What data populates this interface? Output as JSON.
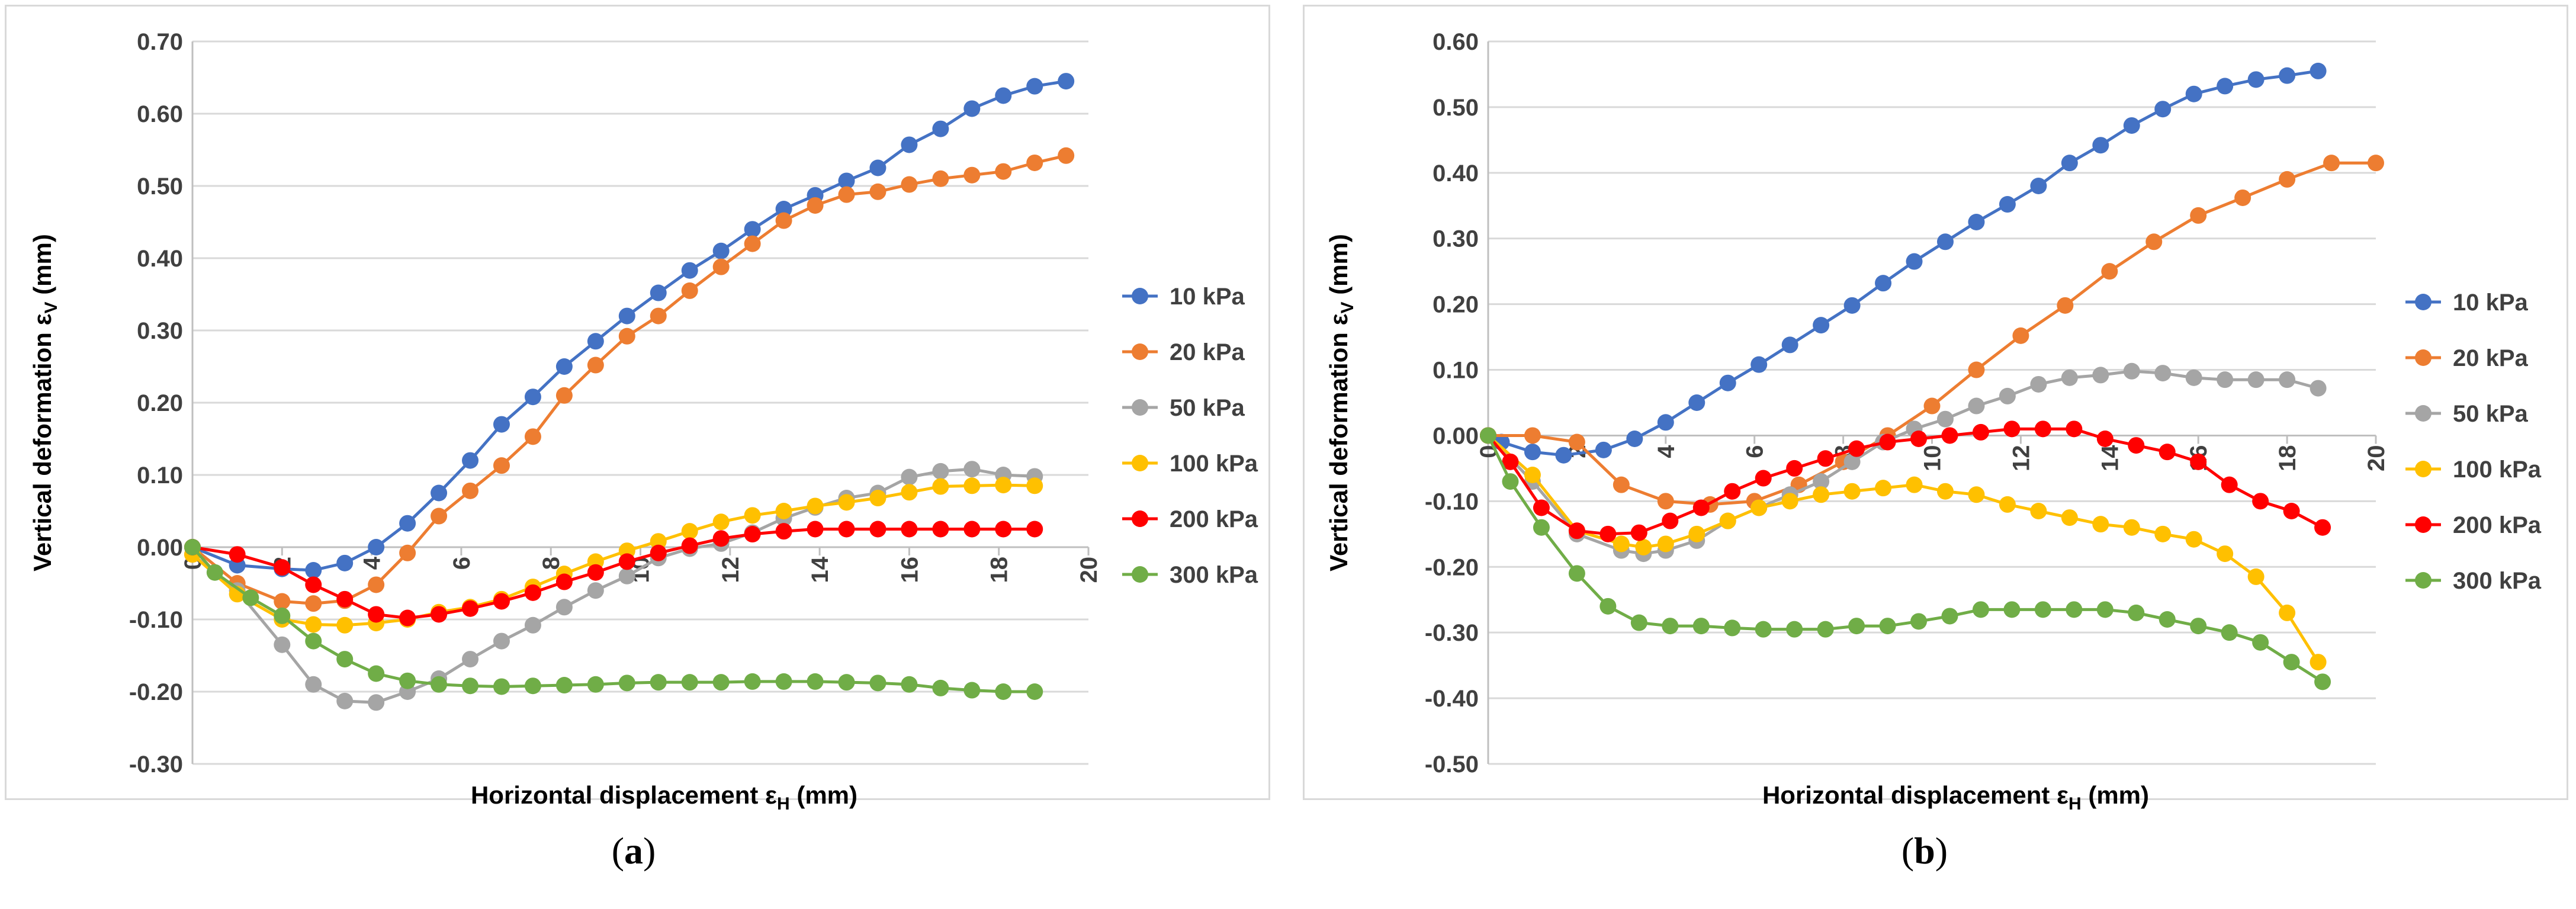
{
  "charts": [
    {
      "id": "a",
      "caption": "a",
      "chart_data": {
        "type": "line",
        "xlabel": "Horizontal displacement ε",
        "xlabel_sub": "H",
        "xlabel_unit": "(mm)",
        "ylabel": "Vertical deformation ε",
        "ylabel_sub": "V",
        "ylabel_unit": "(mm)",
        "xlim": [
          0,
          20
        ],
        "ylim": [
          -0.3,
          0.7
        ],
        "xticks": [
          0,
          2,
          4,
          6,
          8,
          10,
          12,
          14,
          16,
          18,
          20
        ],
        "yticks": [
          -0.3,
          -0.2,
          -0.1,
          0.0,
          0.1,
          0.2,
          0.3,
          0.4,
          0.5,
          0.6,
          0.7
        ],
        "ytick_labels": [
          "-0.30",
          "-0.20",
          "-0.10",
          "0.00",
          "0.10",
          "0.20",
          "0.30",
          "0.40",
          "0.50",
          "0.60",
          "0.70"
        ],
        "legend_position": "right",
        "series": [
          {
            "name": "10 kPa",
            "color": "#4472c4",
            "x": [
              0,
              1,
              2,
              2.7,
              3.4,
              4.1,
              4.8,
              5.5,
              6.2,
              6.9,
              7.6,
              8.3,
              9,
              9.7,
              10.4,
              11.1,
              11.8,
              12.5,
              13.2,
              13.9,
              14.6,
              15.3,
              16,
              16.7,
              17.4,
              18.1,
              18.8,
              19.5
            ],
            "y": [
              0,
              -0.025,
              -0.03,
              -0.032,
              -0.022,
              0,
              0.033,
              0.075,
              0.12,
              0.17,
              0.208,
              0.25,
              0.285,
              0.32,
              0.352,
              0.383,
              0.41,
              0.44,
              0.468,
              0.487,
              0.507,
              0.525,
              0.557,
              0.579,
              0.607,
              0.625,
              0.638,
              0.645
            ]
          },
          {
            "name": "20 kPa",
            "color": "#ed7d31",
            "x": [
              0,
              1,
              2,
              2.7,
              3.4,
              4.1,
              4.8,
              5.5,
              6.2,
              6.9,
              7.6,
              8.3,
              9,
              9.7,
              10.4,
              11.1,
              11.8,
              12.5,
              13.2,
              13.9,
              14.6,
              15.3,
              16,
              16.7,
              17.4,
              18.1,
              18.8,
              19.5
            ],
            "y": [
              0,
              -0.05,
              -0.075,
              -0.078,
              -0.074,
              -0.052,
              -0.008,
              0.043,
              0.078,
              0.113,
              0.153,
              0.21,
              0.252,
              0.292,
              0.32,
              0.355,
              0.388,
              0.42,
              0.452,
              0.473,
              0.488,
              0.492,
              0.502,
              0.51,
              0.515,
              0.52,
              0.532,
              0.542
            ]
          },
          {
            "name": "50 kPa",
            "color": "#a5a5a5",
            "x": [
              0,
              1,
              2,
              2.7,
              3.4,
              4.1,
              4.8,
              5.5,
              6.2,
              6.9,
              7.6,
              8.3,
              9,
              9.7,
              10.4,
              11.1,
              11.8,
              12.5,
              13.2,
              13.9,
              14.6,
              15.3,
              16,
              16.7,
              17.4,
              18.1,
              18.8
            ],
            "y": [
              -0.01,
              -0.06,
              -0.135,
              -0.19,
              -0.213,
              -0.215,
              -0.2,
              -0.182,
              -0.155,
              -0.13,
              -0.108,
              -0.083,
              -0.06,
              -0.04,
              -0.015,
              -0.002,
              0.005,
              0.02,
              0.04,
              0.055,
              0.068,
              0.075,
              0.097,
              0.105,
              0.108,
              0.1,
              0.098
            ]
          },
          {
            "name": "100 kPa",
            "color": "#ffc000",
            "x": [
              0,
              1,
              2,
              2.7,
              3.4,
              4.1,
              4.8,
              5.5,
              6.2,
              6.9,
              7.6,
              8.3,
              9,
              9.7,
              10.4,
              11.1,
              11.8,
              12.5,
              13.2,
              13.9,
              14.6,
              15.3,
              16,
              16.7,
              17.4,
              18.1,
              18.8
            ],
            "y": [
              -0.01,
              -0.065,
              -0.1,
              -0.107,
              -0.108,
              -0.105,
              -0.1,
              -0.09,
              -0.083,
              -0.072,
              -0.055,
              -0.037,
              -0.02,
              -0.005,
              0.008,
              0.022,
              0.035,
              0.044,
              0.05,
              0.057,
              0.062,
              0.068,
              0.076,
              0.084,
              0.085,
              0.086,
              0.085
            ]
          },
          {
            "name": "200 kPa",
            "color": "#ff0000",
            "x": [
              0,
              1,
              2,
              2.7,
              3.4,
              4.1,
              4.8,
              5.5,
              6.2,
              6.9,
              7.6,
              8.3,
              9,
              9.7,
              10.4,
              11.1,
              11.8,
              12.5,
              13.2,
              13.9,
              14.6,
              15.3,
              16,
              16.7,
              17.4,
              18.1,
              18.8
            ],
            "y": [
              0,
              -0.01,
              -0.028,
              -0.052,
              -0.072,
              -0.093,
              -0.098,
              -0.093,
              -0.085,
              -0.075,
              -0.063,
              -0.048,
              -0.035,
              -0.02,
              -0.008,
              0.002,
              0.012,
              0.018,
              0.022,
              0.025,
              0.025,
              0.025,
              0.025,
              0.025,
              0.025,
              0.025,
              0.025
            ]
          },
          {
            "name": "300 kPa",
            "color": "#70ad47",
            "x": [
              0,
              0.5,
              1.3,
              2,
              2.7,
              3.4,
              4.1,
              4.8,
              5.5,
              6.2,
              6.9,
              7.6,
              8.3,
              9,
              9.7,
              10.4,
              11.1,
              11.8,
              12.5,
              13.2,
              13.9,
              14.6,
              15.3,
              16,
              16.7,
              17.4,
              18.1,
              18.8
            ],
            "y": [
              0,
              -0.035,
              -0.07,
              -0.095,
              -0.13,
              -0.155,
              -0.175,
              -0.185,
              -0.19,
              -0.192,
              -0.193,
              -0.192,
              -0.191,
              -0.19,
              -0.188,
              -0.187,
              -0.187,
              -0.187,
              -0.186,
              -0.186,
              -0.186,
              -0.187,
              -0.188,
              -0.19,
              -0.195,
              -0.198,
              -0.2,
              -0.2
            ]
          }
        ]
      }
    },
    {
      "id": "b",
      "caption": "b",
      "chart_data": {
        "type": "line",
        "xlabel": "Horizontal displacement ε",
        "xlabel_sub": "H",
        "xlabel_unit": "(mm)",
        "ylabel": "Vertical deformation ε",
        "ylabel_sub": "V",
        "ylabel_unit": "(mm)",
        "xlim": [
          0,
          20
        ],
        "ylim": [
          -0.5,
          0.6
        ],
        "xticks": [
          0,
          2,
          4,
          6,
          8,
          10,
          12,
          14,
          16,
          18,
          20
        ],
        "yticks": [
          -0.5,
          -0.4,
          -0.3,
          -0.2,
          -0.1,
          0.0,
          0.1,
          0.2,
          0.3,
          0.4,
          0.5,
          0.6
        ],
        "ytick_labels": [
          "-0.50",
          "-0.40",
          "-0.30",
          "-0.20",
          "-0.10",
          "0.00",
          "0.10",
          "0.20",
          "0.30",
          "0.40",
          "0.50",
          "0.60"
        ],
        "legend_position": "right",
        "series": [
          {
            "name": "10 kPa",
            "color": "#4472c4",
            "x": [
              0,
              0.3,
              1,
              1.7,
              2.6,
              3.3,
              4,
              4.7,
              5.4,
              6.1,
              6.8,
              7.5,
              8.2,
              8.9,
              9.6,
              10.3,
              11,
              11.7,
              12.4,
              13.1,
              13.8,
              14.5,
              15.2,
              15.9,
              16.6,
              17.3,
              18,
              18.7
            ],
            "y": [
              0,
              -0.01,
              -0.025,
              -0.03,
              -0.022,
              -0.005,
              0.02,
              0.05,
              0.08,
              0.108,
              0.138,
              0.168,
              0.198,
              0.232,
              0.265,
              0.295,
              0.325,
              0.352,
              0.38,
              0.415,
              0.442,
              0.472,
              0.497,
              0.52,
              0.532,
              0.542,
              0.548,
              0.555
            ]
          },
          {
            "name": "20 kPa",
            "color": "#ed7d31",
            "x": [
              0,
              1,
              2,
              3,
              4,
              5,
              6,
              7,
              8,
              9,
              10,
              11,
              12,
              13,
              14,
              15,
              16,
              17,
              18,
              19,
              20
            ],
            "y": [
              0,
              0,
              -0.01,
              -0.075,
              -0.1,
              -0.105,
              -0.1,
              -0.075,
              -0.04,
              0.0,
              0.045,
              0.1,
              0.152,
              0.198,
              0.25,
              0.295,
              0.335,
              0.362,
              0.39,
              0.415,
              0.415
            ]
          },
          {
            "name": "50 kPa",
            "color": "#a5a5a5",
            "x": [
              0,
              1,
              2,
              3,
              3.5,
              4,
              4.7,
              5.4,
              6.1,
              6.8,
              7.5,
              8.2,
              8.9,
              9.6,
              10.3,
              11,
              11.7,
              12.4,
              13.1,
              13.8,
              14.5,
              15.2,
              15.9,
              16.6,
              17.3,
              18,
              18.7
            ],
            "y": [
              0,
              -0.07,
              -0.15,
              -0.175,
              -0.18,
              -0.175,
              -0.16,
              -0.13,
              -0.11,
              -0.09,
              -0.07,
              -0.04,
              -0.01,
              0.01,
              0.025,
              0.045,
              0.06,
              0.078,
              0.088,
              0.092,
              0.098,
              0.095,
              0.088,
              0.085,
              0.085,
              0.085,
              0.072
            ]
          },
          {
            "name": "100 kPa",
            "color": "#ffc000",
            "x": [
              0,
              1,
              2,
              3,
              3.5,
              4,
              4.7,
              5.4,
              6.1,
              6.8,
              7.5,
              8.2,
              8.9,
              9.6,
              10.3,
              11,
              11.7,
              12.4,
              13.1,
              13.8,
              14.5,
              15.2,
              15.9,
              16.6,
              17.3,
              18,
              18.7
            ],
            "y": [
              0,
              -0.06,
              -0.145,
              -0.165,
              -0.17,
              -0.165,
              -0.15,
              -0.13,
              -0.11,
              -0.1,
              -0.09,
              -0.085,
              -0.08,
              -0.075,
              -0.085,
              -0.09,
              -0.105,
              -0.115,
              -0.125,
              -0.135,
              -0.14,
              -0.15,
              -0.158,
              -0.18,
              -0.215,
              -0.27,
              -0.345
            ]
          },
          {
            "name": "200 kPa",
            "color": "#ff0000",
            "x": [
              0,
              0.5,
              1.2,
              2,
              2.7,
              3.4,
              4.1,
              4.8,
              5.5,
              6.2,
              6.9,
              7.6,
              8.3,
              9,
              9.7,
              10.4,
              11.1,
              11.8,
              12.5,
              13.2,
              13.9,
              14.6,
              15.3,
              16,
              16.7,
              17.4,
              18.1,
              18.8
            ],
            "y": [
              0,
              -0.04,
              -0.11,
              -0.145,
              -0.15,
              -0.148,
              -0.13,
              -0.11,
              -0.085,
              -0.065,
              -0.05,
              -0.035,
              -0.02,
              -0.01,
              -0.005,
              0.0,
              0.005,
              0.01,
              0.01,
              0.01,
              -0.005,
              -0.015,
              -0.025,
              -0.04,
              -0.075,
              -0.1,
              -0.115,
              -0.14
            ]
          },
          {
            "name": "300 kPa",
            "color": "#70ad47",
            "x": [
              0,
              0.5,
              1.2,
              2,
              2.7,
              3.4,
              4.1,
              4.8,
              5.5,
              6.2,
              6.9,
              7.6,
              8.3,
              9,
              9.7,
              10.4,
              11.1,
              11.8,
              12.5,
              13.2,
              13.9,
              14.6,
              15.3,
              16,
              16.7,
              17.4,
              18.1,
              18.8
            ],
            "y": [
              0,
              -0.07,
              -0.14,
              -0.21,
              -0.26,
              -0.285,
              -0.29,
              -0.29,
              -0.293,
              -0.295,
              -0.295,
              -0.295,
              -0.29,
              -0.29,
              -0.283,
              -0.275,
              -0.265,
              -0.265,
              -0.265,
              -0.265,
              -0.265,
              -0.27,
              -0.28,
              -0.29,
              -0.3,
              -0.315,
              -0.345,
              -0.375
            ]
          }
        ]
      }
    }
  ]
}
